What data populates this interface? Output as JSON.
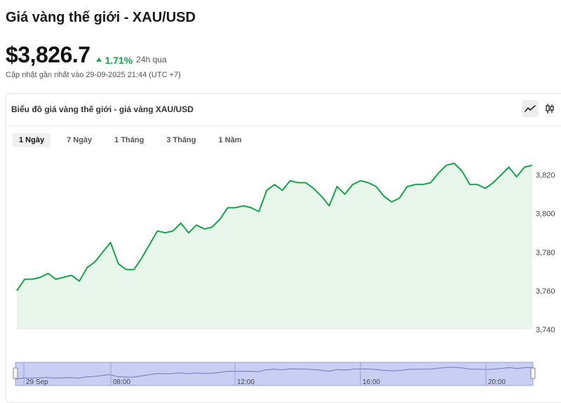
{
  "header": {
    "title": "Giá vàng thế giới - XAU/USD",
    "price": "$3,826.7",
    "change": "1.71%",
    "change_period": "24h qua",
    "updated": "Cập nhật gần nhất vào 29-09-2025 21:44 (UTC +7)"
  },
  "card": {
    "title": "Biểu đồ giá vàng thế giới - giá vàng XAU/USD",
    "tools": [
      "line-chart-icon",
      "candlestick-icon"
    ],
    "active_tool": "line-chart-icon",
    "tabs": [
      "1 Ngày",
      "7 Ngày",
      "1 Tháng",
      "3 Tháng",
      "1 Năm"
    ],
    "active_tab": "1 Ngày"
  },
  "colors": {
    "line": "#16a34a",
    "area": "#e9f6ec",
    "accent_up": "#16a34a",
    "navigator_bg": "#c9cef3"
  },
  "chart_data": {
    "type": "area",
    "ylim": [
      3740,
      3830
    ],
    "y_ticks": [
      "3,820",
      "3,800",
      "3,780",
      "3,760",
      "3,740"
    ],
    "y_tick_values": [
      3820,
      3800,
      3780,
      3760,
      3740
    ],
    "values": [
      3760,
      3766,
      3766,
      3767,
      3769,
      3766,
      3767,
      3768,
      3765,
      3772,
      3775,
      3780,
      3785,
      3774,
      3771,
      3771,
      3777,
      3784,
      3791,
      3790,
      3791,
      3795,
      3790,
      3794,
      3792,
      3793,
      3797,
      3803,
      3803,
      3804,
      3803,
      3801,
      3812,
      3815,
      3812,
      3817,
      3816,
      3816,
      3813,
      3809,
      3804,
      3814,
      3810,
      3815,
      3817,
      3816,
      3814,
      3809,
      3806,
      3808,
      3814,
      3815,
      3815,
      3816,
      3821,
      3825,
      3826,
      3822,
      3815,
      3815,
      3813,
      3816,
      3820,
      3824,
      3819,
      3824,
      3825
    ],
    "navigator_labels": [
      "29 Sep",
      "08:00",
      "12:00",
      "16:00",
      "20:00"
    ],
    "grid": false,
    "legend": "none"
  }
}
